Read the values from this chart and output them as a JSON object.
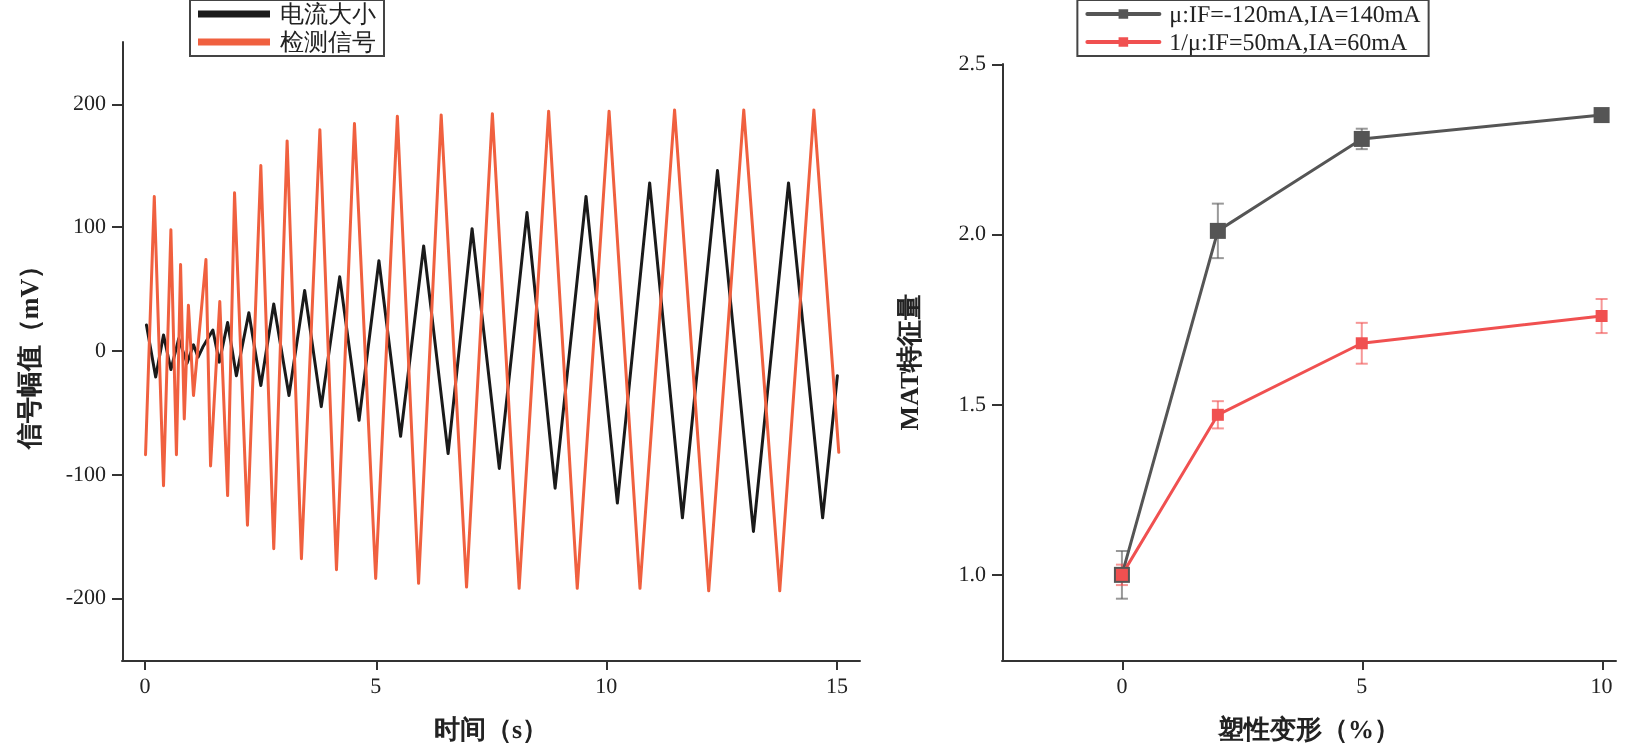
{
  "chart_data": [
    {
      "type": "line",
      "xlabel": "时间（s）",
      "ylabel": "信号幅值（mV）",
      "xlim": [
        -0.5,
        15.5
      ],
      "xticks": [
        0,
        5,
        10,
        15
      ],
      "ylim": [
        -250,
        250
      ],
      "yticks": [
        -200,
        -100,
        0,
        100,
        200
      ],
      "legend": "top left",
      "grid": false,
      "marker": "none",
      "line_style": "solid",
      "series": [
        {
          "name": "电流大小",
          "color": "#1a1a1a",
          "x": [
            0.03,
            0.23,
            0.4,
            0.56,
            0.73,
            0.91,
            1.05,
            1.15,
            1.25,
            1.47,
            1.61,
            1.79,
            1.98,
            2.25,
            2.51,
            2.79,
            3.12,
            3.46,
            3.82,
            4.22,
            4.64,
            5.07,
            5.54,
            6.04,
            6.57,
            7.09,
            7.68,
            8.28,
            8.89,
            9.56,
            10.24,
            10.94,
            11.65,
            12.41,
            13.19,
            13.95,
            14.69,
            15.01
          ],
          "values": [
            21,
            -21,
            13,
            -15,
            10,
            -10,
            5,
            -5,
            3,
            17,
            -9,
            23,
            -20,
            31,
            -28,
            38,
            -36,
            49,
            -45,
            60,
            -56,
            73,
            -69,
            85,
            -83,
            99,
            -95,
            112,
            -111,
            125,
            -123,
            136,
            -135,
            146,
            -146,
            136,
            -135,
            -20
          ]
        },
        {
          "name": "检测信号",
          "color": "#f0603f",
          "x": [
            0.01,
            0.2,
            0.4,
            0.56,
            0.68,
            0.77,
            0.85,
            0.94,
            1.05,
            1.32,
            1.42,
            1.62,
            1.79,
            1.94,
            2.22,
            2.51,
            2.79,
            3.08,
            3.39,
            3.79,
            4.15,
            4.54,
            5.0,
            5.47,
            5.93,
            6.42,
            6.97,
            7.53,
            8.11,
            8.75,
            9.37,
            10.06,
            10.73,
            11.48,
            12.22,
            12.98,
            13.76,
            14.5,
            15.04
          ],
          "values": [
            -84,
            125,
            -109,
            98,
            -84,
            70,
            -55,
            37,
            -36,
            74,
            -93,
            40,
            -117,
            128,
            -141,
            150,
            -160,
            170,
            -168,
            179,
            -177,
            184,
            -184,
            190,
            -188,
            191,
            -191,
            192,
            -192,
            194,
            -192,
            194,
            -192,
            195,
            -194,
            195,
            -194,
            195,
            -82
          ]
        }
      ]
    },
    {
      "type": "line",
      "xlabel": "塑性变形（%）",
      "ylabel": "MAT特征量",
      "xlim": [
        -2.5,
        10.3
      ],
      "xticks": [
        0,
        5,
        10
      ],
      "ylim": [
        0.75,
        2.5
      ],
      "yticks": [
        {
          "value": 1,
          "label": "1.0"
        },
        {
          "value": 1.5,
          "label": "1.5"
        },
        {
          "value": 2,
          "label": "2.0"
        },
        {
          "value": 2.5,
          "label": "2.5"
        }
      ],
      "legend": "top",
      "grid": false,
      "marker": "square",
      "line_style": "solid",
      "series": [
        {
          "name": "μ:IF=-120mA,IA=140mA",
          "color": "#555555",
          "x": [
            0,
            2,
            5,
            10
          ],
          "values": [
            1.0,
            2.01,
            2.28,
            2.35
          ],
          "errors": [
            0.07,
            0.08,
            0.03,
            0.01
          ]
        },
        {
          "name": "1/μ:IF=50mA,IA=60mA",
          "color": "#f05050",
          "x": [
            0,
            2,
            5,
            10
          ],
          "values": [
            1.0,
            1.47,
            1.68,
            1.76
          ],
          "errors": [
            0.03,
            0.04,
            0.06,
            0.05
          ]
        }
      ]
    }
  ]
}
